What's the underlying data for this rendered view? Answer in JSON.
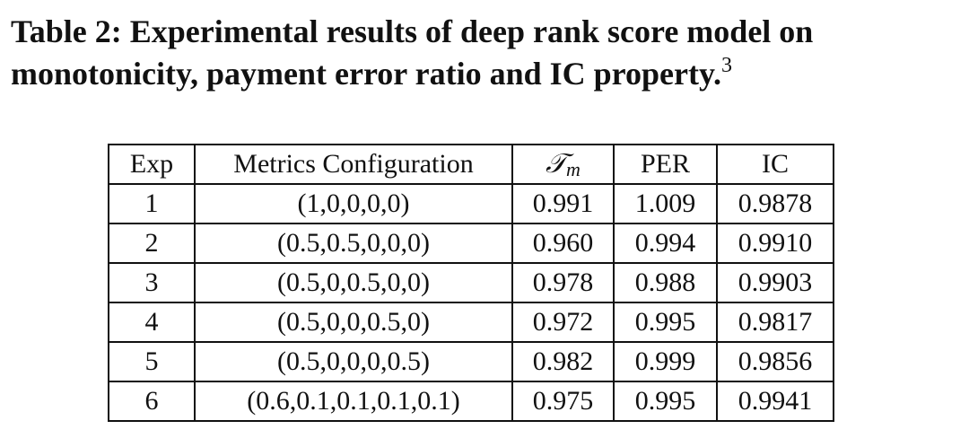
{
  "caption": {
    "title": "Table 2: Experimental results of deep rank score model on monotonicity, payment error ratio and IC property.",
    "footnote_mark": "3"
  },
  "table": {
    "header": [
      "Exp",
      "Metrics Configuration",
      {
        "symbol": "𝒯",
        "subscript": "m"
      },
      "PER",
      "IC"
    ],
    "rows": [
      [
        "1",
        "(1,0,0,0,0)",
        "0.991",
        "1.009",
        "0.9878"
      ],
      [
        "2",
        "(0.5,0.5,0,0,0)",
        "0.960",
        "0.994",
        "0.9910"
      ],
      [
        "3",
        "(0.5,0,0.5,0,0)",
        "0.978",
        "0.988",
        "0.9903"
      ],
      [
        "4",
        "(0.5,0,0,0.5,0)",
        "0.972",
        "0.995",
        "0.9817"
      ],
      [
        "5",
        "(0.5,0,0,0,0.5)",
        "0.982",
        "0.999",
        "0.9856"
      ],
      [
        "6",
        "(0.6,0.1,0.1,0.1,0.1)",
        "0.975",
        "0.995",
        "0.9941"
      ]
    ]
  }
}
